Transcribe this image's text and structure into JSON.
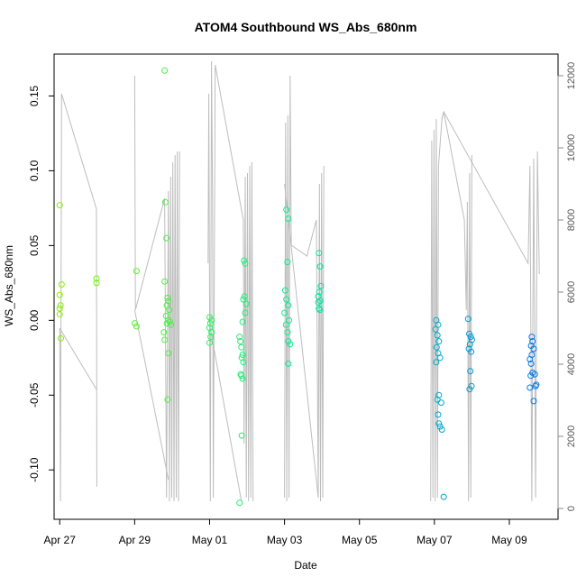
{
  "chart_data": {
    "type": "scatter",
    "title": "ATOM4 Southbound WS_Abs_680nm",
    "xlabel": "Date",
    "ylabel": "WS_Abs_680nm",
    "xlim": [
      -0.15,
      13.3
    ],
    "ylim": [
      -0.133,
      0.178
    ],
    "y2lim": [
      -300,
      12600
    ],
    "x_ticks": [
      {
        "v": 0,
        "label": "Apr 27"
      },
      {
        "v": 2,
        "label": "Apr 29"
      },
      {
        "v": 4,
        "label": "May 01"
      },
      {
        "v": 6,
        "label": "May 03"
      },
      {
        "v": 8,
        "label": "May 05"
      },
      {
        "v": 10,
        "label": "May 07"
      },
      {
        "v": 12,
        "label": "May 09"
      }
    ],
    "y_ticks": [
      {
        "v": -0.1,
        "label": "-0.10"
      },
      {
        "v": -0.05,
        "label": "-0.05"
      },
      {
        "v": 0.0,
        "label": "0.00"
      },
      {
        "v": 0.05,
        "label": "0.05"
      },
      {
        "v": 0.1,
        "label": "0.10"
      },
      {
        "v": 0.15,
        "label": "0.15"
      }
    ],
    "y2_ticks": [
      {
        "v": 0,
        "label": "0"
      },
      {
        "v": 2000,
        "label": "2000"
      },
      {
        "v": 4000,
        "label": "4000"
      },
      {
        "v": 6000,
        "label": "6000"
      },
      {
        "v": 8000,
        "label": "8000"
      },
      {
        "v": 10000,
        "label": "10000"
      },
      {
        "v": 12000,
        "label": "12000"
      }
    ],
    "colors": {
      "points_start": "#88ee00",
      "points_mid": "#00ee99",
      "points_end": "#0077ee",
      "altitude_line": "#bdbdbd"
    },
    "altitude_series": [
      {
        "name": "flight-1",
        "x": [
          0.0,
          0.02,
          0.05,
          0.98,
          0.99
        ],
        "y": [
          5000,
          200,
          11500,
          8300,
          600
        ]
      },
      {
        "name": "flight-1-descent",
        "x": [
          0.0,
          0.98
        ],
        "y": [
          5000,
          3300
        ]
      },
      {
        "name": "flight-2",
        "x": [
          2.0,
          2.02,
          2.8,
          2.85,
          2.9,
          2.93,
          2.96,
          2.99,
          3.02,
          3.05,
          3.08,
          3.11,
          3.14,
          3.17,
          3.2
        ],
        "y": [
          12000,
          5500,
          8600,
          300,
          8800,
          200,
          9200,
          300,
          9600,
          200,
          9800,
          300,
          9900,
          200,
          9900
        ]
      },
      {
        "name": "flight-2-descent",
        "x": [
          2.0,
          2.9
        ],
        "y": [
          5500,
          800
        ]
      },
      {
        "name": "flight-3",
        "x": [
          3.96,
          3.98,
          4.02,
          4.05,
          4.08,
          4.1,
          4.15,
          4.9,
          4.92,
          4.95,
          4.98,
          5.01,
          5.04,
          5.07,
          5.1,
          5.13,
          5.16
        ],
        "y": [
          6800,
          11500,
          200,
          12400,
          8500,
          300,
          12300,
          8000,
          1800,
          9200,
          300,
          9300,
          200,
          9500,
          300,
          9600,
          200
        ]
      },
      {
        "name": "flight-3-descent",
        "x": [
          4.02,
          4.85
        ],
        "y": [
          5000,
          200
        ]
      },
      {
        "name": "flight-4",
        "x": [
          6.0,
          6.03,
          6.06,
          6.09,
          6.12,
          6.15,
          6.18,
          6.6,
          6.85,
          6.9,
          6.93,
          6.96,
          6.99,
          7.02,
          7.05
        ],
        "y": [
          300,
          10700,
          200,
          10900,
          300,
          12000,
          7300,
          7000,
          8000,
          300,
          9000,
          200,
          9300,
          300,
          9500
        ]
      },
      {
        "name": "flight-4-descent",
        "x": [
          6.0,
          6.9
        ],
        "y": [
          9000,
          300
        ]
      },
      {
        "name": "flight-5",
        "x": [
          9.9,
          9.93,
          9.96,
          9.99,
          10.02,
          10.05,
          10.08,
          10.11,
          10.2,
          10.25,
          10.8,
          10.85,
          10.88,
          10.91,
          10.94,
          10.97,
          11.0
        ],
        "y": [
          200,
          10200,
          300,
          10500,
          200,
          10800,
          300,
          9500,
          10800,
          11000,
          8000,
          5500,
          8500,
          200,
          9300,
          300,
          9800
        ]
      },
      {
        "name": "flight-5-b",
        "x": [
          10.2,
          10.25,
          12.5,
          12.55,
          12.6,
          12.65,
          12.7,
          12.75,
          12.8
        ],
        "y": [
          10800,
          11000,
          6800,
          9500,
          200,
          9700,
          300,
          9900,
          6500
        ]
      }
    ],
    "points": [
      {
        "x": 0.0,
        "y": 0.077
      },
      {
        "x": 0.0,
        "y": 0.017
      },
      {
        "x": 0.02,
        "y": 0.01
      },
      {
        "x": 0.0,
        "y": 0.008
      },
      {
        "x": 0.0,
        "y": 0.004
      },
      {
        "x": 0.05,
        "y": 0.024
      },
      {
        "x": 0.03,
        "y": -0.012
      },
      {
        "x": 0.98,
        "y": 0.028
      },
      {
        "x": 0.98,
        "y": 0.025
      },
      {
        "x": 2.05,
        "y": 0.033
      },
      {
        "x": 2.0,
        "y": -0.002
      },
      {
        "x": 2.05,
        "y": -0.004
      },
      {
        "x": 2.8,
        "y": 0.167
      },
      {
        "x": 2.82,
        "y": 0.079
      },
      {
        "x": 2.85,
        "y": 0.055
      },
      {
        "x": 2.8,
        "y": 0.026
      },
      {
        "x": 2.88,
        "y": 0.015
      },
      {
        "x": 2.9,
        "y": 0.013
      },
      {
        "x": 2.86,
        "y": 0.01
      },
      {
        "x": 2.92,
        "y": 0.007
      },
      {
        "x": 2.84,
        "y": 0.003
      },
      {
        "x": 2.9,
        "y": 0.0
      },
      {
        "x": 2.94,
        "y": -0.001
      },
      {
        "x": 2.97,
        "y": -0.003
      },
      {
        "x": 2.86,
        "y": -0.002
      },
      {
        "x": 2.78,
        "y": -0.008
      },
      {
        "x": 2.8,
        "y": -0.013
      },
      {
        "x": 2.9,
        "y": -0.022
      },
      {
        "x": 2.88,
        "y": -0.053
      },
      {
        "x": 4.0,
        "y": 0.002
      },
      {
        "x": 4.05,
        "y": 0.0
      },
      {
        "x": 4.02,
        "y": -0.002
      },
      {
        "x": 4.0,
        "y": -0.005
      },
      {
        "x": 4.05,
        "y": -0.008
      },
      {
        "x": 4.03,
        "y": -0.011
      },
      {
        "x": 4.0,
        "y": -0.015
      },
      {
        "x": 4.92,
        "y": 0.04
      },
      {
        "x": 4.95,
        "y": 0.038
      },
      {
        "x": 4.93,
        "y": 0.016
      },
      {
        "x": 4.9,
        "y": 0.014
      },
      {
        "x": 4.98,
        "y": 0.011
      },
      {
        "x": 4.95,
        "y": 0.005
      },
      {
        "x": 4.88,
        "y": -0.001
      },
      {
        "x": 4.8,
        "y": -0.011
      },
      {
        "x": 4.82,
        "y": -0.014
      },
      {
        "x": 4.85,
        "y": -0.018
      },
      {
        "x": 4.88,
        "y": -0.023
      },
      {
        "x": 4.86,
        "y": -0.025
      },
      {
        "x": 4.9,
        "y": -0.028
      },
      {
        "x": 4.83,
        "y": -0.036
      },
      {
        "x": 4.85,
        "y": -0.037
      },
      {
        "x": 4.88,
        "y": -0.039
      },
      {
        "x": 4.86,
        "y": -0.077
      },
      {
        "x": 4.8,
        "y": -0.122
      },
      {
        "x": 6.05,
        "y": 0.074
      },
      {
        "x": 6.1,
        "y": 0.068
      },
      {
        "x": 6.08,
        "y": 0.039
      },
      {
        "x": 6.02,
        "y": 0.02
      },
      {
        "x": 6.05,
        "y": 0.014
      },
      {
        "x": 6.1,
        "y": 0.01
      },
      {
        "x": 6.0,
        "y": 0.005
      },
      {
        "x": 6.12,
        "y": 0.0
      },
      {
        "x": 6.04,
        "y": -0.003
      },
      {
        "x": 6.08,
        "y": -0.008
      },
      {
        "x": 6.1,
        "y": -0.014
      },
      {
        "x": 6.15,
        "y": -0.016
      },
      {
        "x": 6.1,
        "y": -0.029
      },
      {
        "x": 6.92,
        "y": 0.045
      },
      {
        "x": 6.95,
        "y": 0.036
      },
      {
        "x": 6.97,
        "y": 0.023
      },
      {
        "x": 6.93,
        "y": 0.019
      },
      {
        "x": 6.9,
        "y": 0.016
      },
      {
        "x": 6.95,
        "y": 0.013
      },
      {
        "x": 6.92,
        "y": 0.008
      },
      {
        "x": 6.94,
        "y": 0.007
      },
      {
        "x": 6.9,
        "y": 0.012
      },
      {
        "x": 10.05,
        "y": 0.0
      },
      {
        "x": 10.1,
        "y": -0.003
      },
      {
        "x": 10.03,
        "y": -0.006
      },
      {
        "x": 10.08,
        "y": -0.01
      },
      {
        "x": 10.12,
        "y": -0.014
      },
      {
        "x": 10.06,
        "y": -0.018
      },
      {
        "x": 10.1,
        "y": -0.022
      },
      {
        "x": 10.15,
        "y": -0.025
      },
      {
        "x": 10.05,
        "y": -0.028
      },
      {
        "x": 10.12,
        "y": -0.05
      },
      {
        "x": 10.08,
        "y": -0.053
      },
      {
        "x": 10.18,
        "y": -0.055
      },
      {
        "x": 10.1,
        "y": -0.063
      },
      {
        "x": 10.15,
        "y": -0.071
      },
      {
        "x": 10.2,
        "y": -0.073
      },
      {
        "x": 10.12,
        "y": -0.069
      },
      {
        "x": 10.25,
        "y": -0.118
      },
      {
        "x": 10.9,
        "y": 0.001
      },
      {
        "x": 10.93,
        "y": -0.009
      },
      {
        "x": 10.97,
        "y": -0.011
      },
      {
        "x": 11.0,
        "y": -0.013
      },
      {
        "x": 10.95,
        "y": -0.016
      },
      {
        "x": 10.92,
        "y": -0.019
      },
      {
        "x": 10.98,
        "y": -0.021
      },
      {
        "x": 10.96,
        "y": -0.034
      },
      {
        "x": 10.99,
        "y": -0.044
      },
      {
        "x": 10.94,
        "y": -0.046
      },
      {
        "x": 12.6,
        "y": -0.011
      },
      {
        "x": 12.62,
        "y": -0.014
      },
      {
        "x": 12.58,
        "y": -0.017
      },
      {
        "x": 12.65,
        "y": -0.019
      },
      {
        "x": 12.6,
        "y": -0.023
      },
      {
        "x": 12.55,
        "y": -0.026
      },
      {
        "x": 12.58,
        "y": -0.029
      },
      {
        "x": 12.62,
        "y": -0.035
      },
      {
        "x": 12.68,
        "y": -0.036
      },
      {
        "x": 12.57,
        "y": -0.037
      },
      {
        "x": 12.72,
        "y": -0.043
      },
      {
        "x": 12.55,
        "y": -0.045
      },
      {
        "x": 12.7,
        "y": -0.044
      },
      {
        "x": 12.65,
        "y": -0.054
      }
    ]
  }
}
